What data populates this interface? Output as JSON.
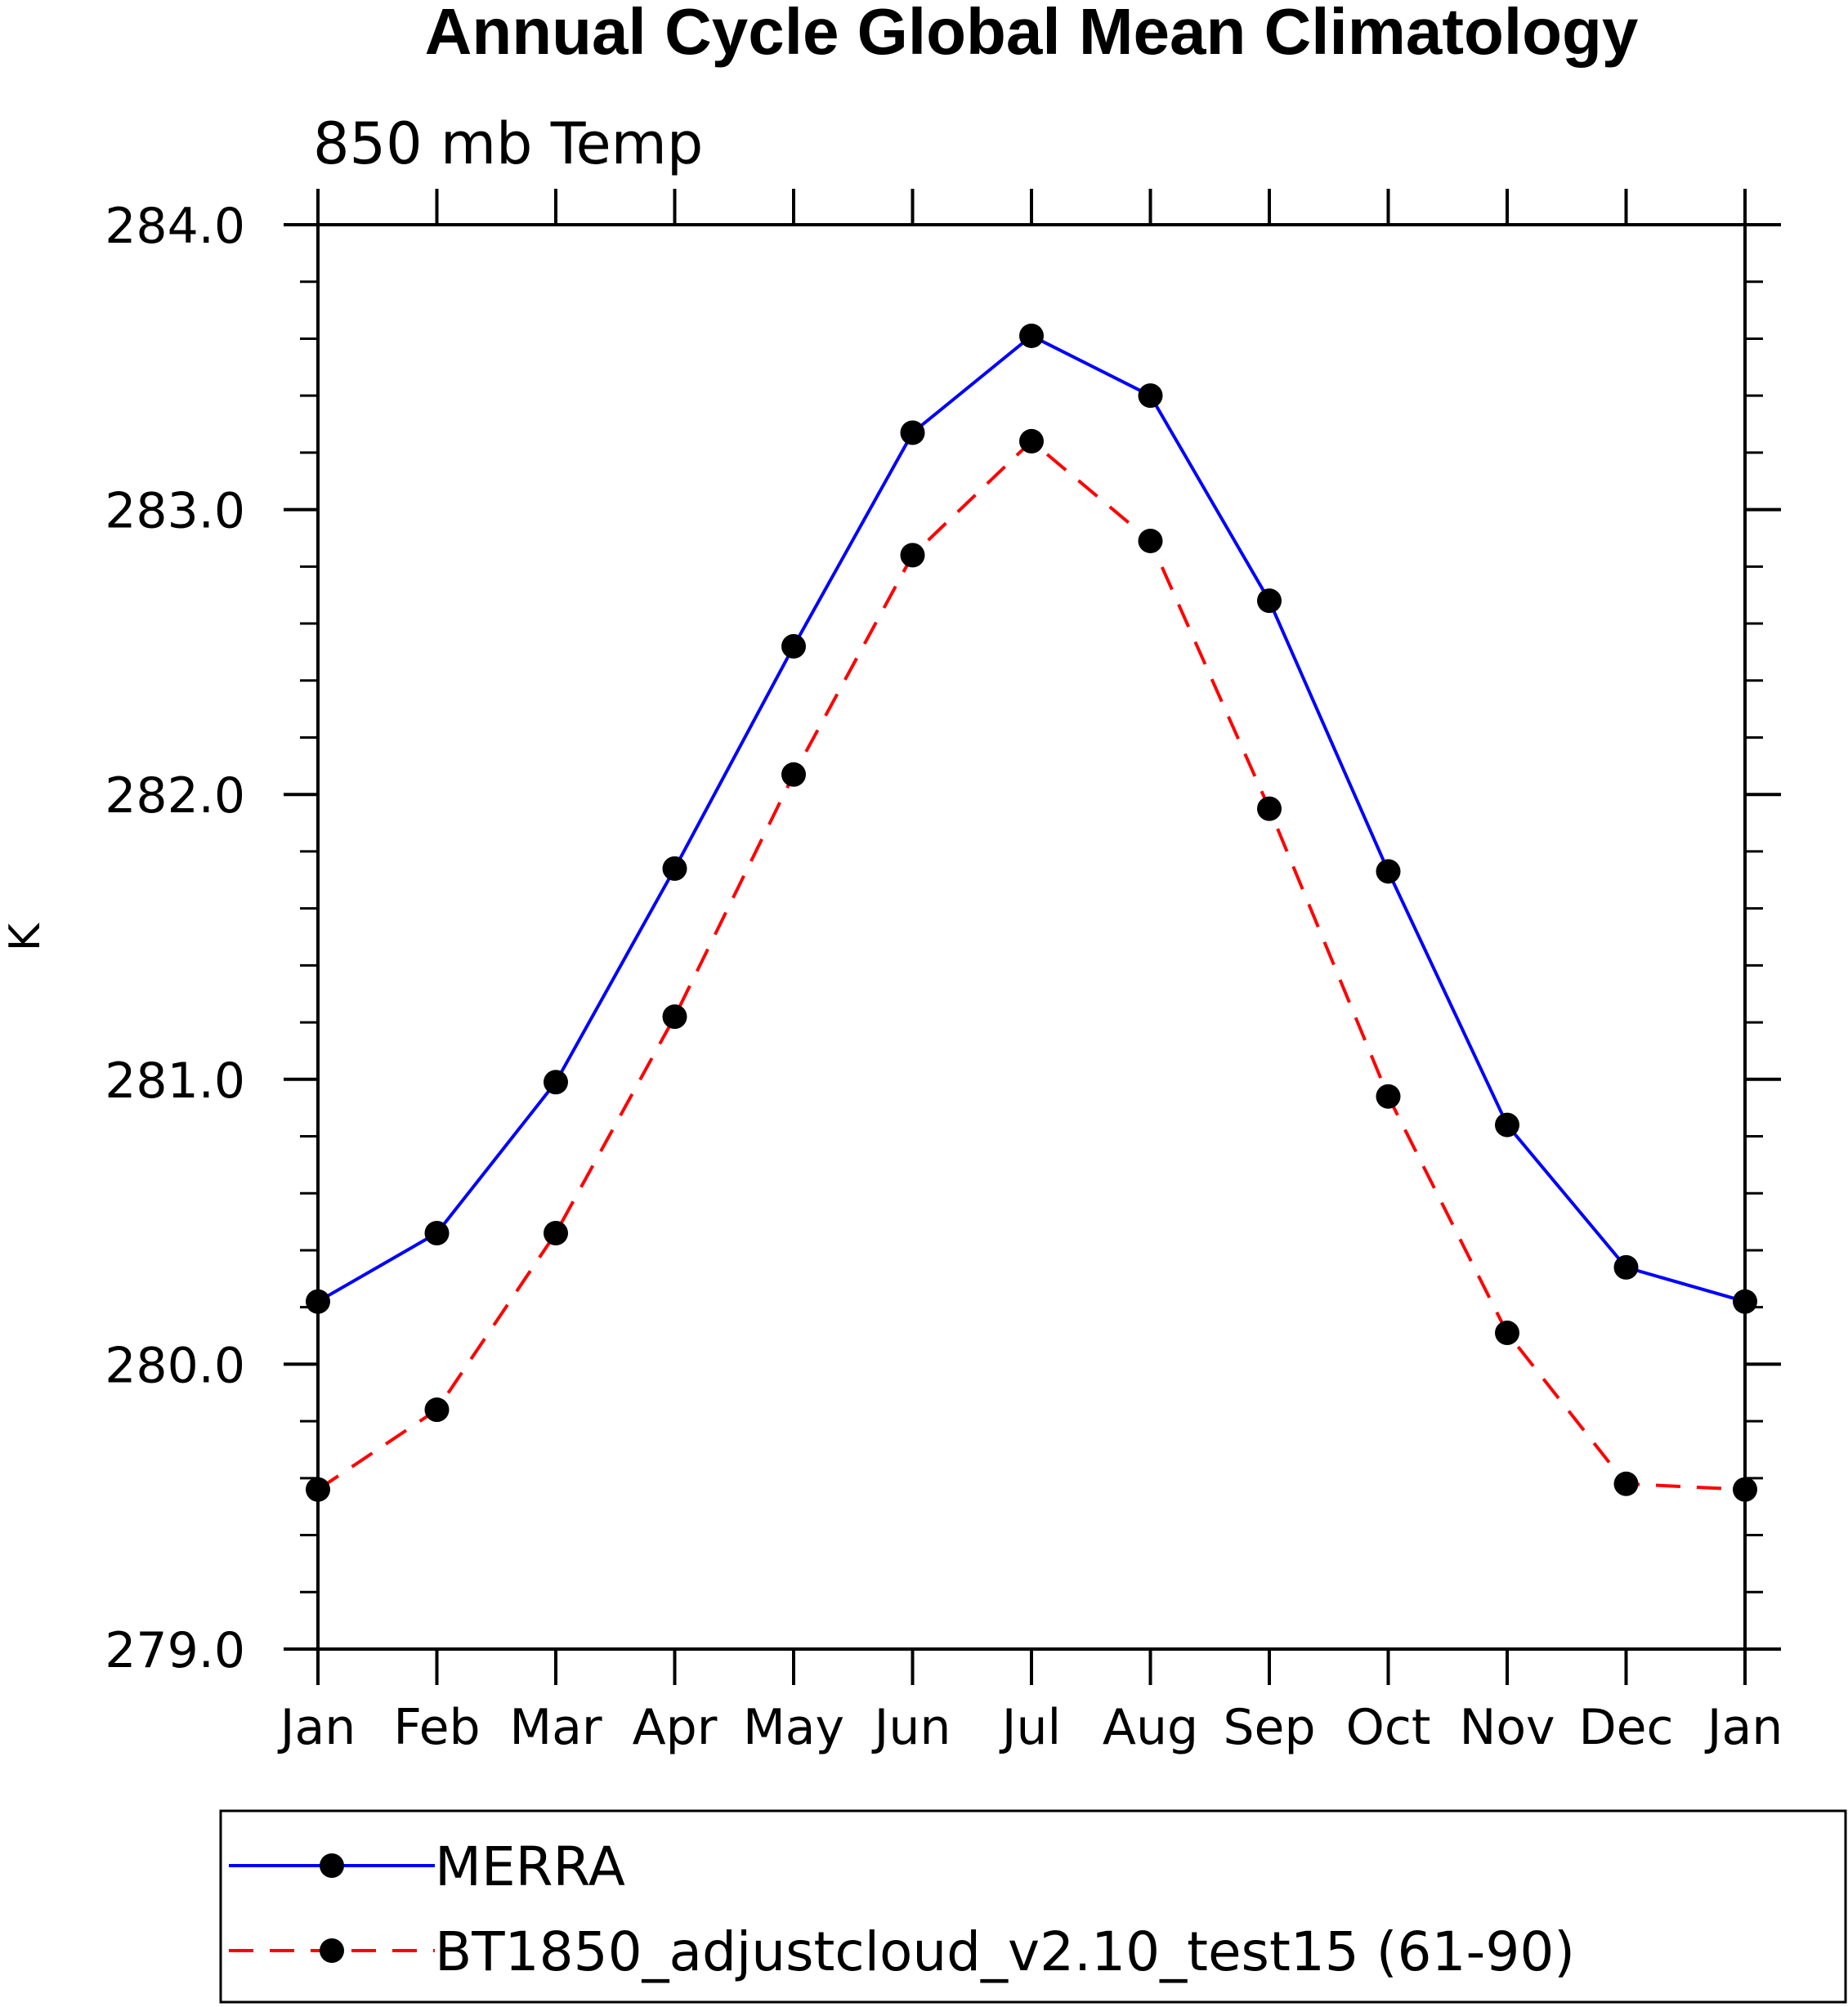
{
  "chart_data": {
    "type": "line",
    "title": "Annual Cycle Global Mean Climatology",
    "subtitle": "850 mb Temp",
    "ylabel": "K",
    "xlabel": "",
    "categories": [
      "Jan",
      "Feb",
      "Mar",
      "Apr",
      "May",
      "Jun",
      "Jul",
      "Aug",
      "Sep",
      "Oct",
      "Nov",
      "Dec",
      "Jan"
    ],
    "ylim": [
      279.0,
      284.0
    ],
    "yticks": [
      "279.0",
      "280.0",
      "281.0",
      "282.0",
      "283.0",
      "284.0"
    ],
    "ytick_values": [
      279.0,
      280.0,
      281.0,
      282.0,
      283.0,
      284.0
    ],
    "yminor_step": 0.2,
    "grid": false,
    "legend_position": "bottom",
    "series": [
      {
        "name": "MERRA",
        "color": "#0000ff",
        "dash": "solid",
        "values": [
          280.22,
          280.46,
          280.99,
          281.74,
          282.52,
          283.27,
          283.61,
          283.4,
          282.68,
          281.73,
          280.84,
          280.34,
          280.22
        ]
      },
      {
        "name": "BT1850_adjustcloud_v2.10_test15 (61-90)",
        "color": "#ff0000",
        "dash": "dashed",
        "values": [
          279.56,
          279.84,
          280.46,
          281.22,
          282.07,
          282.84,
          283.24,
          282.89,
          281.95,
          280.94,
          280.11,
          279.58,
          279.56
        ]
      }
    ]
  }
}
